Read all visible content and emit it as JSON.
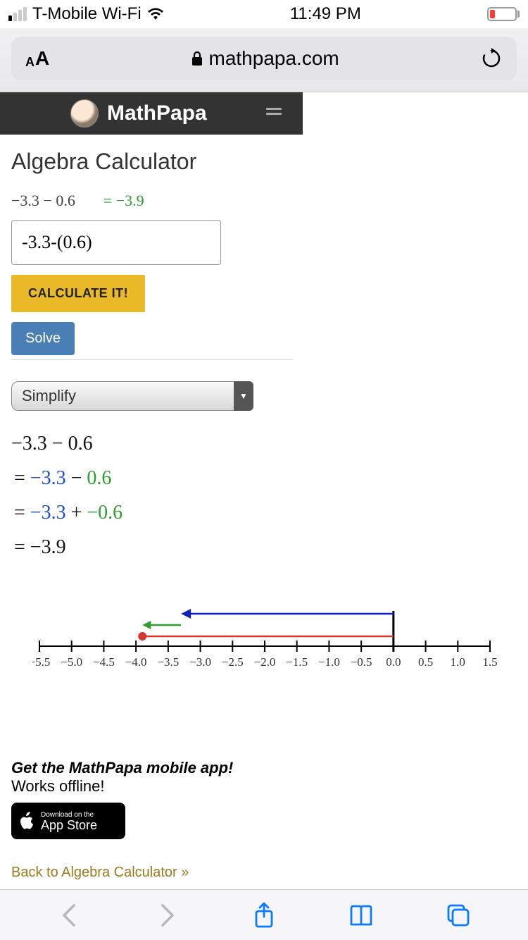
{
  "status": {
    "carrier": "T-Mobile Wi-Fi",
    "time": "11:49 PM",
    "battery_pct": 15,
    "battery_color": "#ff3b30"
  },
  "browser": {
    "url": "mathpapa.com"
  },
  "header": {
    "brand": "MathPapa"
  },
  "page": {
    "title": "Algebra Calculator",
    "expression_lhs": "−3.3 − 0.6",
    "expression_rhs": "= −3.9",
    "input_value": "-3.3-(0.6)",
    "calc_button": "CALCULATE IT!",
    "solve_button": "Solve",
    "select_value": "Simplify"
  },
  "work": {
    "line1": "−3.3 − 0.6",
    "line2_eq": "=",
    "line2_a": "−3.3",
    "line2_op": " − ",
    "line2_b": "0.6",
    "line3_eq": "=",
    "line3_a": "−3.3",
    "line3_op": " + ",
    "line3_b": "−0.6",
    "line4": "= −3.9"
  },
  "numberline": {
    "ticks": [
      "−5.5",
      "−5.0",
      "−4.5",
      "−4.0",
      "−3.5",
      "−3.0",
      "−2.5",
      "−2.0",
      "−1.5",
      "−1.0",
      "−0.5",
      "0.0",
      "0.5",
      "1.0",
      "1.5"
    ],
    "axis_min": -5.5,
    "axis_max": 1.5,
    "tick_step": 0.5,
    "zero_bar_x": 0.0,
    "red_start_x": 0.0,
    "red_end_x": -3.9,
    "blue_start_x": 0.0,
    "blue_end_x": -3.3,
    "green_start_x": -3.3,
    "green_end_x": -3.9,
    "point_x": -3.9,
    "colors": {
      "axis": "#000000",
      "red": "#d33a2f",
      "blue": "#1020c0",
      "green": "#2e9e2e",
      "point": "#d33a2f"
    }
  },
  "promo": {
    "title": "Get the MathPapa mobile app!",
    "sub": "Works offline!",
    "appstore_line1": "Download on the",
    "appstore_line2": "App Store"
  },
  "backlink": "Back to Algebra Calculator »"
}
